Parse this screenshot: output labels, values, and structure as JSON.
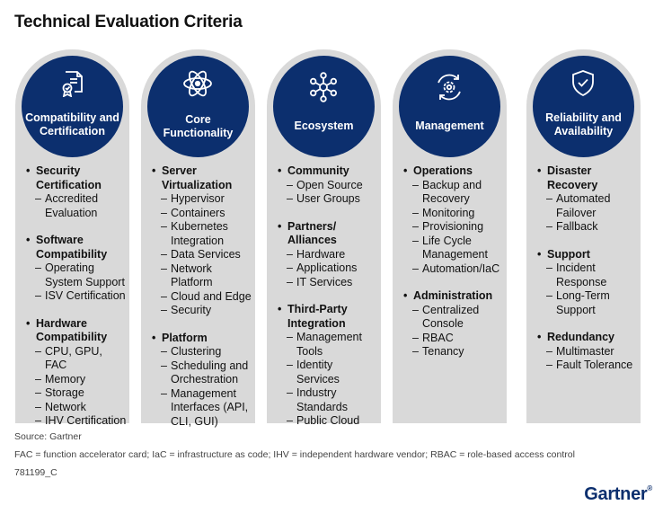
{
  "title": "Technical Evaluation Criteria",
  "columns": [
    {
      "icon": "certificate-icon",
      "label": "Compatibility and Certification",
      "sections": [
        {
          "heading": "Security Certification",
          "items": [
            "Accredited Evaluation"
          ]
        },
        {
          "heading": "Software Compatibility",
          "items": [
            "Operating System Support",
            "ISV Certification"
          ]
        },
        {
          "heading": "Hardware Compatibility",
          "items": [
            "CPU, GPU, FAC",
            "Memory",
            "Storage",
            "Network",
            "IHV Certification"
          ]
        }
      ]
    },
    {
      "icon": "atom-icon",
      "label": "Core Functionality",
      "sections": [
        {
          "heading": "Server Virtualization",
          "items": [
            "Hypervisor",
            "Containers",
            "Kubernetes Integration",
            "Data Services",
            "Network Platform",
            "Cloud and Edge",
            "Security"
          ]
        },
        {
          "heading": "Platform",
          "items": [
            "Clustering",
            "Scheduling and Orchestration",
            "Management Interfaces (API, CLI, GUI)"
          ]
        }
      ]
    },
    {
      "icon": "network-icon",
      "label": "Ecosystem",
      "sections": [
        {
          "heading": "Community",
          "items": [
            "Open Source",
            "User Groups"
          ]
        },
        {
          "heading": "Partners/ Alliances",
          "items": [
            "Hardware",
            "Applications",
            "IT Services"
          ]
        },
        {
          "heading": "Third-Party Integration",
          "items": [
            "Management Tools",
            "Identity Services",
            "Industry Standards",
            "Public Cloud"
          ]
        }
      ]
    },
    {
      "icon": "gear-cycle-icon",
      "label": "Management",
      "sections": [
        {
          "heading": "Operations",
          "items": [
            "Backup and Recovery",
            "Monitoring",
            "Provisioning",
            "Life Cycle Management",
            "Automation/IaC"
          ]
        },
        {
          "heading": "Administration",
          "items": [
            "Centralized Console",
            "RBAC",
            "Tenancy"
          ]
        }
      ]
    },
    {
      "icon": "shield-check-icon",
      "label": "Reliability and Availability",
      "sections": [
        {
          "heading": "Disaster Recovery",
          "items": [
            "Automated Failover",
            "Fallback"
          ]
        },
        {
          "heading": "Support",
          "items": [
            "Incident Response",
            "Long-Term Support"
          ]
        },
        {
          "heading": "Redundancy",
          "items": [
            "Multimaster",
            "Fault Tolerance"
          ]
        }
      ]
    }
  ],
  "footer": {
    "source": "Source: Gartner",
    "note": "FAC = function accelerator card; IaC = infrastructure as code; IHV = independent hardware vendor; RBAC = role-based access control",
    "id": "781199_C"
  },
  "logo": {
    "text": "Gartner",
    "mark": "®"
  }
}
